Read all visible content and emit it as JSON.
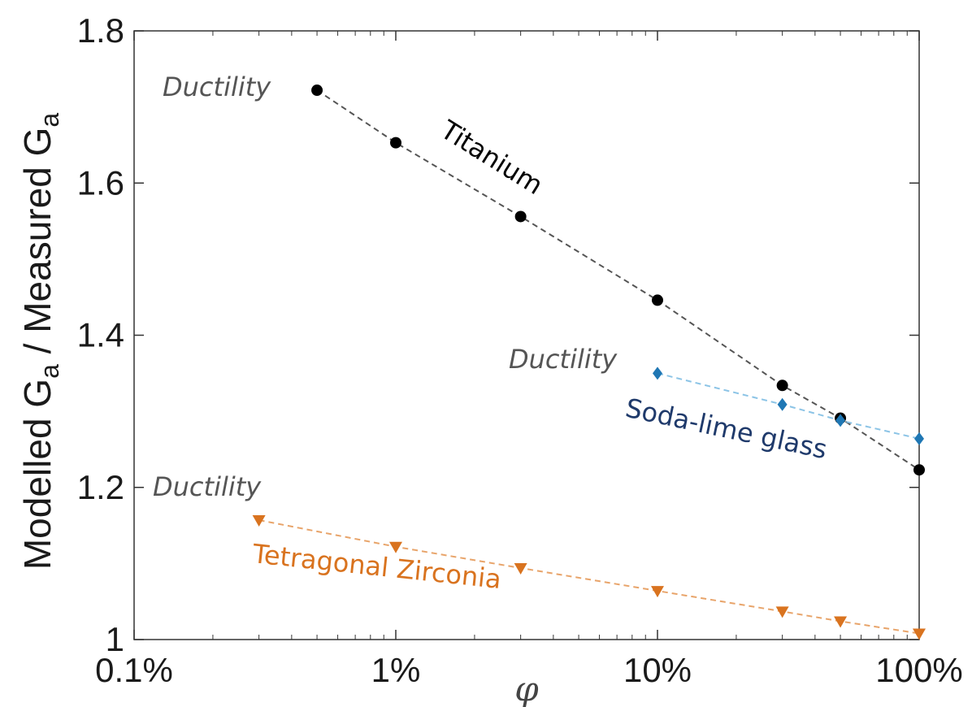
{
  "chart_data": {
    "type": "scatter",
    "xscale": "log",
    "xlim": [
      0.1,
      100
    ],
    "ylim": [
      1.0,
      1.8
    ],
    "x_ticks": [
      0.1,
      1,
      10,
      100
    ],
    "x_tick_labels": [
      "0.1%",
      "1%",
      "10%",
      "100%"
    ],
    "y_ticks": [
      1.0,
      1.2,
      1.4,
      1.6,
      1.8
    ],
    "y_tick_labels": [
      "1",
      "1.2",
      "1.4",
      "1.6",
      "1.8"
    ],
    "xlabel": "φ",
    "ylabel": {
      "part1": "Modelled G",
      "sub1": "a",
      "part2": " / Measured G",
      "sub2": "a"
    },
    "series": [
      {
        "name": "Titanium",
        "color": "#000000",
        "line_color": "#555555",
        "marker": "circle",
        "x": [
          0.5,
          1,
          3,
          10,
          30,
          50,
          100
        ],
        "y": [
          1.722,
          1.653,
          1.556,
          1.446,
          1.334,
          1.291,
          1.223
        ]
      },
      {
        "name": "Soda-lime glass",
        "color": "#1f77b4",
        "line_color": "#8cc4e6",
        "marker": "diamond",
        "x": [
          10,
          30,
          50,
          100
        ],
        "y": [
          1.35,
          1.309,
          1.288,
          1.264
        ]
      },
      {
        "name": "Tetragonal Zirconia",
        "color": "#d9731f",
        "line_color": "#e8a46a",
        "marker": "triangle-down",
        "x": [
          0.3,
          1,
          3,
          10,
          30,
          50,
          100
        ],
        "y": [
          1.157,
          1.122,
          1.094,
          1.064,
          1.037,
          1.024,
          1.008
        ]
      }
    ],
    "annotations": {
      "titanium_label": "Titanium",
      "glass_label": "Soda-lime glass",
      "zirconia_label": "Tetragonal Zirconia",
      "ductility_1": "Ductility",
      "ductility_2": "Ductility",
      "ductility_3": "Ductility"
    },
    "annotation_colors": {
      "titanium": "#000000",
      "glass": "#1f3a6b",
      "zirconia": "#d9731f",
      "ductility": "#555555"
    }
  }
}
